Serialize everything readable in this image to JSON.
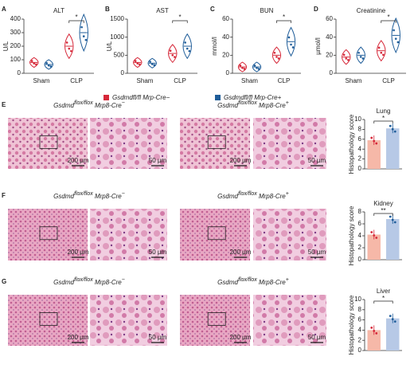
{
  "chart_data": [
    {
      "type": "violin",
      "panel": "A",
      "title": "ALT",
      "y_label": "U/L",
      "categories": [
        "Sham",
        "CLP"
      ],
      "series": [
        {
          "name": "Gsdmdfl/fl Mrp-Cre−",
          "color": "#d62839",
          "values": [
            80,
            200
          ]
        },
        {
          "name": "Gsdmdfl/fl Mrp-Cre+",
          "color": "#1f5d99",
          "values": [
            65,
            300
          ]
        }
      ],
      "ylim": [
        0,
        400
      ],
      "yticks": [
        0,
        100,
        200,
        300,
        400
      ],
      "annotations": [
        "*"
      ]
    },
    {
      "type": "violin",
      "panel": "B",
      "title": "AST",
      "y_label": "U/L",
      "categories": [
        "Sham",
        "CLP"
      ],
      "series": [
        {
          "name": "Gsdmdfl/fl Mrp-Cre−",
          "color": "#d62839",
          "values": [
            300,
            550
          ]
        },
        {
          "name": "Gsdmdfl/fl Mrp-Cre+",
          "color": "#1f5d99",
          "values": [
            280,
            750
          ]
        }
      ],
      "ylim": [
        0,
        1500
      ],
      "yticks": [
        0,
        500,
        1000,
        1500
      ],
      "annotations": [
        "*"
      ]
    },
    {
      "type": "violin",
      "panel": "C",
      "title": "BUN",
      "y_label": "mmol/l",
      "categories": [
        "Sham",
        "CLP"
      ],
      "series": [
        {
          "name": "Gsdmdfl/fl Mrp-Cre−",
          "color": "#d62839",
          "values": [
            7,
            20
          ]
        },
        {
          "name": "Gsdmdfl/fl Mrp-Cre+",
          "color": "#1f5d99",
          "values": [
            7,
            35
          ]
        }
      ],
      "ylim": [
        0,
        60
      ],
      "yticks": [
        0,
        20,
        40,
        60
      ],
      "annotations": [
        "*"
      ]
    },
    {
      "type": "violin",
      "panel": "D",
      "title": "Creatinine",
      "y_label": "µmol/l",
      "categories": [
        "Sham",
        "CLP"
      ],
      "series": [
        {
          "name": "Gsdmdfl/fl Mrp-Cre−",
          "color": "#d62839",
          "values": [
            18,
            25
          ]
        },
        {
          "name": "Gsdmdfl/fl Mrp-Cre+",
          "color": "#1f5d99",
          "values": [
            20,
            42
          ]
        }
      ],
      "ylim": [
        0,
        60
      ],
      "yticks": [
        0,
        20,
        40,
        60
      ],
      "annotations": [
        "*"
      ]
    },
    {
      "type": "bar",
      "title": "Lung",
      "y_label": "Histopathology score",
      "categories": [
        null,
        null
      ],
      "values": [
        5.8,
        8.2
      ],
      "colors": [
        "#f6b8a8",
        "#b7c9e6"
      ],
      "ylim": [
        0,
        10
      ],
      "yticks": [
        0,
        2,
        4,
        6,
        8,
        10
      ],
      "annotations": [
        "*"
      ]
    },
    {
      "type": "bar",
      "title": "Kidney",
      "y_label": "Histopathology score",
      "categories": [
        null,
        null
      ],
      "values": [
        4.2,
        6.8
      ],
      "colors": [
        "#f6b8a8",
        "#b7c9e6"
      ],
      "ylim": [
        0,
        8
      ],
      "yticks": [
        0,
        2,
        4,
        6,
        8
      ],
      "annotations": [
        "**"
      ]
    },
    {
      "type": "bar",
      "title": "Liver",
      "y_label": "Histopathology score",
      "categories": [
        null,
        null
      ],
      "values": [
        4,
        6.3
      ],
      "colors": [
        "#f6b8a8",
        "#b7c9e6"
      ],
      "ylim": [
        0,
        10
      ],
      "yticks": [
        0,
        2,
        4,
        6,
        8,
        10
      ],
      "annotations": [
        "*"
      ]
    }
  ],
  "image_panels": [
    {
      "letter": "E",
      "headings": [
        {
          "gene": "Gsdmd",
          "genotype": "flox/flox",
          "driver": "Mrp8-Cre",
          "driver_genotype": "−"
        },
        {
          "gene": "Gsdmd",
          "genotype": "flox/flox",
          "driver": "Mrp8-Cre",
          "driver_genotype": "+"
        }
      ],
      "scale_bars": [
        "200 µm",
        "50 µm",
        "200 µm",
        "50 µm"
      ]
    },
    {
      "letter": "F",
      "headings": [
        {
          "gene": "Gsdmd",
          "genotype": "flox/flox",
          "driver": "Mrp8-Cre",
          "driver_genotype": "−"
        },
        {
          "gene": "Gsdmd",
          "genotype": "flox/flox",
          "driver": "Mrp8-Cre",
          "driver_genotype": "+"
        }
      ],
      "scale_bars": [
        "200 µm",
        "50 µm",
        "200 µm",
        "50 µm"
      ]
    },
    {
      "letter": "G",
      "headings": [
        {
          "gene": "Gsdmd",
          "genotype": "flox/flox",
          "driver": "Mrp8-Cre",
          "driver_genotype": "−"
        },
        {
          "gene": "Gsdmd",
          "genotype": "flox/flox",
          "driver": "Mrp8-Cre",
          "driver_genotype": "+"
        }
      ],
      "scale_bars": [
        "200 µm",
        "50 µm",
        "200 µm",
        "50 µm"
      ]
    }
  ]
}
